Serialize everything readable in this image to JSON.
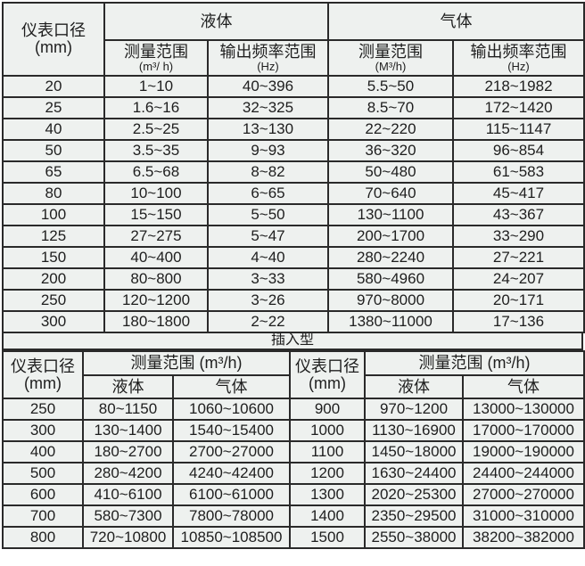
{
  "pipe_type": {
    "header": {
      "diameter": "仪表口径",
      "diameter_unit": "(mm)",
      "liquid": "液体",
      "gas": "气体",
      "liquid_range": "测量范围",
      "liquid_range_unit": "(m³/ h)",
      "liquid_freq": "输出频率范围",
      "liquid_freq_unit": "(Hz)",
      "gas_range": "测量范围",
      "gas_range_unit": "(M³/h)",
      "gas_freq": "输出频率范围",
      "gas_freq_unit": "(Hz)"
    },
    "rows": [
      [
        "20",
        "1~10",
        "40~396",
        "5.5~50",
        "218~1982"
      ],
      [
        "25",
        "1.6~16",
        "32~325",
        "8.5~70",
        "172~1420"
      ],
      [
        "40",
        "2.5~25",
        "13~130",
        "22~220",
        "115~1147"
      ],
      [
        "50",
        "3.5~35",
        "9~93",
        "36~320",
        "96~854"
      ],
      [
        "65",
        "6.5~68",
        "8~82",
        "50~480",
        "61~583"
      ],
      [
        "80",
        "10~100",
        "6~65",
        "70~640",
        "45~417"
      ],
      [
        "100",
        "15~150",
        "5~50",
        "130~1100",
        "43~367"
      ],
      [
        "125",
        "27~275",
        "5~47",
        "200~1700",
        "33~290"
      ],
      [
        "150",
        "40~400",
        "4~40",
        "280~2240",
        "27~221"
      ],
      [
        "200",
        "80~800",
        "3~33",
        "580~4960",
        "24~207"
      ],
      [
        "250",
        "120~1200",
        "3~26",
        "970~8000",
        "20~171"
      ],
      [
        "300",
        "180~1800",
        "2~22",
        "1380~11000",
        "17~136"
      ]
    ]
  },
  "insertion_type": {
    "title": "插入型",
    "header": {
      "diameter": "仪表口径",
      "diameter_unit": "(mm)",
      "range": "测量范围 (m³/h)",
      "liquid": "液体",
      "gas": "气体"
    },
    "rows": [
      [
        "250",
        "80~1150",
        "1060~10600",
        "900",
        "970~1200",
        "13000~130000"
      ],
      [
        "300",
        "130~1400",
        "1540~15400",
        "1000",
        "1130~16900",
        "17000~170000"
      ],
      [
        "400",
        "180~2700",
        "2700~27000",
        "1100",
        "1450~18000",
        "19000~190000"
      ],
      [
        "500",
        "280~4200",
        "4240~42400",
        "1200",
        "1630~24400",
        "24400~244000"
      ],
      [
        "600",
        "410~6100",
        "6100~61000",
        "1300",
        "2020~25300",
        "27000~270000"
      ],
      [
        "700",
        "580~7300",
        "7800~78000",
        "1400",
        "2350~29500",
        "31000~310000"
      ],
      [
        "800",
        "720~10800",
        "10850~108500",
        "1500",
        "2550~38000",
        "38200~382000"
      ]
    ]
  }
}
